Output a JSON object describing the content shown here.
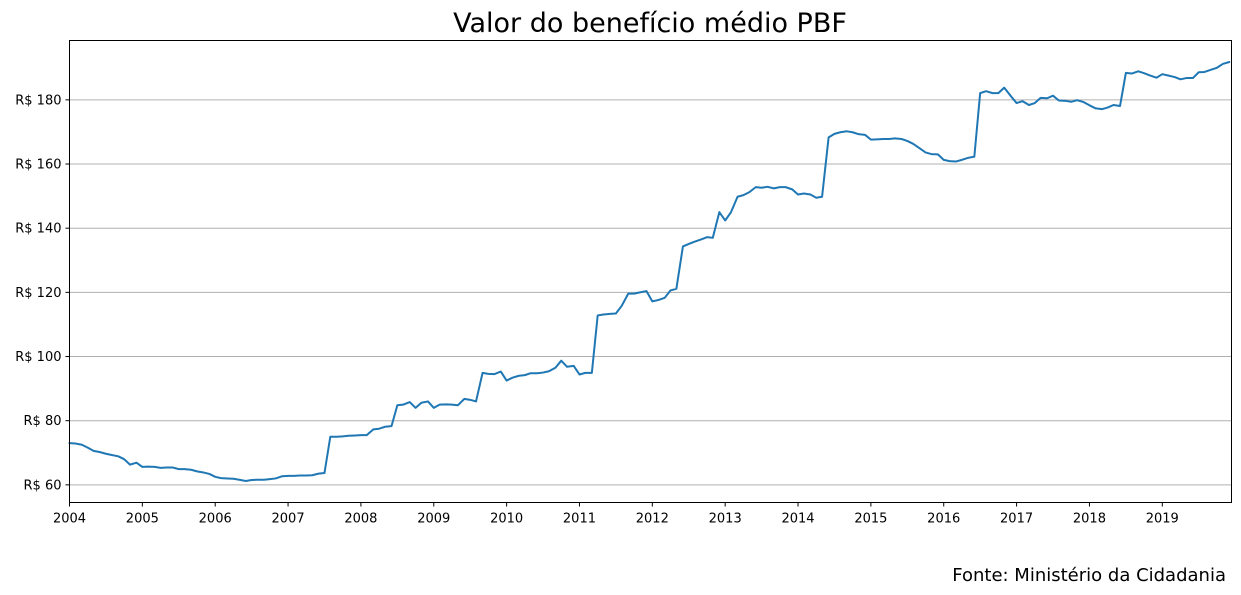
{
  "chart_data": {
    "type": "line",
    "title": "Valor do benefício médio PBF",
    "source": "Fonte: Ministério da Cidadania",
    "xlabel": "",
    "ylabel": "",
    "xlim": [
      2004.0,
      2019.95
    ],
    "ylim": [
      54.5,
      198.5
    ],
    "x_ticks": [
      2004,
      2005,
      2006,
      2007,
      2008,
      2009,
      2010,
      2011,
      2012,
      2013,
      2014,
      2015,
      2016,
      2017,
      2018,
      2019
    ],
    "y_ticks": [
      60,
      80,
      100,
      120,
      140,
      160,
      180
    ],
    "y_tick_prefix": "R$ ",
    "grid": "horizontal",
    "color": "#1f77b4",
    "series": [
      {
        "values": [
          [
            2004.0,
            73.0
          ],
          [
            2004.08,
            72.9
          ],
          [
            2004.17,
            72.5
          ],
          [
            2004.25,
            71.6
          ],
          [
            2004.33,
            70.6
          ],
          [
            2004.42,
            70.2
          ],
          [
            2004.5,
            69.7
          ],
          [
            2004.58,
            69.3
          ],
          [
            2004.67,
            68.9
          ],
          [
            2004.75,
            68.0
          ],
          [
            2004.83,
            66.3
          ],
          [
            2004.92,
            66.9
          ],
          [
            2005.0,
            65.6
          ],
          [
            2005.08,
            65.7
          ],
          [
            2005.17,
            65.6
          ],
          [
            2005.25,
            65.3
          ],
          [
            2005.33,
            65.4
          ],
          [
            2005.42,
            65.4
          ],
          [
            2005.5,
            64.9
          ],
          [
            2005.58,
            64.9
          ],
          [
            2005.67,
            64.7
          ],
          [
            2005.75,
            64.2
          ],
          [
            2005.83,
            63.9
          ],
          [
            2005.92,
            63.4
          ],
          [
            2006.0,
            62.5
          ],
          [
            2006.08,
            62.1
          ],
          [
            2006.17,
            62.0
          ],
          [
            2006.25,
            61.9
          ],
          [
            2006.33,
            61.6
          ],
          [
            2006.42,
            61.2
          ],
          [
            2006.5,
            61.5
          ],
          [
            2006.58,
            61.6
          ],
          [
            2006.67,
            61.6
          ],
          [
            2006.75,
            61.8
          ],
          [
            2006.83,
            62.0
          ],
          [
            2006.92,
            62.7
          ],
          [
            2007.0,
            62.8
          ],
          [
            2007.08,
            62.8
          ],
          [
            2007.17,
            62.9
          ],
          [
            2007.25,
            62.9
          ],
          [
            2007.33,
            63.0
          ],
          [
            2007.42,
            63.5
          ],
          [
            2007.5,
            63.7
          ],
          [
            2007.58,
            75.0
          ],
          [
            2007.67,
            75.0
          ],
          [
            2007.75,
            75.1
          ],
          [
            2007.83,
            75.3
          ],
          [
            2007.92,
            75.4
          ],
          [
            2008.0,
            75.5
          ],
          [
            2008.08,
            75.5
          ],
          [
            2008.17,
            77.3
          ],
          [
            2008.25,
            77.5
          ],
          [
            2008.33,
            78.1
          ],
          [
            2008.42,
            78.3
          ],
          [
            2008.5,
            84.8
          ],
          [
            2008.58,
            85.0
          ],
          [
            2008.67,
            85.8
          ],
          [
            2008.75,
            84.0
          ],
          [
            2008.83,
            85.6
          ],
          [
            2008.92,
            86.0
          ],
          [
            2009.0,
            84.0
          ],
          [
            2009.08,
            85.0
          ],
          [
            2009.17,
            85.1
          ],
          [
            2009.25,
            85.0
          ],
          [
            2009.33,
            84.8
          ],
          [
            2009.42,
            86.8
          ],
          [
            2009.5,
            86.5
          ],
          [
            2009.58,
            86.0
          ],
          [
            2009.67,
            94.9
          ],
          [
            2009.75,
            94.6
          ],
          [
            2009.83,
            94.5
          ],
          [
            2009.92,
            95.3
          ],
          [
            2010.0,
            92.5
          ],
          [
            2010.08,
            93.4
          ],
          [
            2010.17,
            94.0
          ],
          [
            2010.25,
            94.2
          ],
          [
            2010.33,
            94.8
          ],
          [
            2010.42,
            94.8
          ],
          [
            2010.5,
            95.0
          ],
          [
            2010.58,
            95.4
          ],
          [
            2010.67,
            96.5
          ],
          [
            2010.75,
            98.7
          ],
          [
            2010.83,
            96.8
          ],
          [
            2010.92,
            97.1
          ],
          [
            2011.0,
            94.4
          ],
          [
            2011.08,
            94.9
          ],
          [
            2011.17,
            94.9
          ],
          [
            2011.25,
            112.8
          ],
          [
            2011.33,
            113.1
          ],
          [
            2011.42,
            113.3
          ],
          [
            2011.5,
            113.4
          ],
          [
            2011.58,
            115.8
          ],
          [
            2011.67,
            119.6
          ],
          [
            2011.75,
            119.6
          ],
          [
            2011.83,
            120.0
          ],
          [
            2011.92,
            120.4
          ],
          [
            2012.0,
            117.2
          ],
          [
            2012.08,
            117.6
          ],
          [
            2012.17,
            118.3
          ],
          [
            2012.25,
            120.6
          ],
          [
            2012.33,
            121.1
          ],
          [
            2012.42,
            134.3
          ],
          [
            2012.5,
            135.1
          ],
          [
            2012.58,
            135.8
          ],
          [
            2012.67,
            136.5
          ],
          [
            2012.75,
            137.2
          ],
          [
            2012.83,
            137.0
          ],
          [
            2012.92,
            145.0
          ],
          [
            2013.0,
            142.4
          ],
          [
            2013.08,
            145.0
          ],
          [
            2013.17,
            149.8
          ],
          [
            2013.25,
            150.3
          ],
          [
            2013.33,
            151.2
          ],
          [
            2013.42,
            152.8
          ],
          [
            2013.5,
            152.6
          ],
          [
            2013.58,
            152.9
          ],
          [
            2013.67,
            152.4
          ],
          [
            2013.75,
            152.8
          ],
          [
            2013.83,
            152.8
          ],
          [
            2013.92,
            152.1
          ],
          [
            2014.0,
            150.5
          ],
          [
            2014.08,
            150.8
          ],
          [
            2014.17,
            150.5
          ],
          [
            2014.25,
            149.5
          ],
          [
            2014.33,
            149.8
          ],
          [
            2014.42,
            168.3
          ],
          [
            2014.5,
            169.4
          ],
          [
            2014.58,
            169.9
          ],
          [
            2014.67,
            170.2
          ],
          [
            2014.75,
            169.9
          ],
          [
            2014.83,
            169.3
          ],
          [
            2014.92,
            169.1
          ],
          [
            2015.0,
            167.6
          ],
          [
            2015.08,
            167.7
          ],
          [
            2015.17,
            167.8
          ],
          [
            2015.25,
            167.8
          ],
          [
            2015.33,
            168.0
          ],
          [
            2015.42,
            167.8
          ],
          [
            2015.5,
            167.2
          ],
          [
            2015.58,
            166.3
          ],
          [
            2015.67,
            164.9
          ],
          [
            2015.75,
            163.6
          ],
          [
            2015.83,
            163.1
          ],
          [
            2015.92,
            163.0
          ],
          [
            2016.0,
            161.3
          ],
          [
            2016.08,
            160.9
          ],
          [
            2016.17,
            160.8
          ],
          [
            2016.25,
            161.3
          ],
          [
            2016.33,
            161.9
          ],
          [
            2016.42,
            162.3
          ],
          [
            2016.5,
            182.1
          ],
          [
            2016.58,
            182.7
          ],
          [
            2016.67,
            182.1
          ],
          [
            2016.75,
            182.1
          ],
          [
            2016.83,
            183.8
          ],
          [
            2016.92,
            181.2
          ],
          [
            2017.0,
            179.0
          ],
          [
            2017.08,
            179.6
          ],
          [
            2017.17,
            178.4
          ],
          [
            2017.25,
            179.0
          ],
          [
            2017.33,
            180.6
          ],
          [
            2017.42,
            180.5
          ],
          [
            2017.5,
            181.3
          ],
          [
            2017.58,
            179.8
          ],
          [
            2017.67,
            179.7
          ],
          [
            2017.75,
            179.4
          ],
          [
            2017.83,
            179.9
          ],
          [
            2017.92,
            179.3
          ],
          [
            2018.0,
            178.3
          ],
          [
            2018.08,
            177.4
          ],
          [
            2018.17,
            177.1
          ],
          [
            2018.25,
            177.6
          ],
          [
            2018.33,
            178.4
          ],
          [
            2018.42,
            178.1
          ],
          [
            2018.5,
            188.4
          ],
          [
            2018.58,
            188.2
          ],
          [
            2018.67,
            188.9
          ],
          [
            2018.75,
            188.3
          ],
          [
            2018.83,
            187.6
          ],
          [
            2018.92,
            186.9
          ],
          [
            2019.0,
            188.0
          ],
          [
            2019.08,
            187.6
          ],
          [
            2019.17,
            187.1
          ],
          [
            2019.25,
            186.4
          ],
          [
            2019.33,
            186.8
          ],
          [
            2019.42,
            186.8
          ],
          [
            2019.5,
            188.6
          ],
          [
            2019.58,
            188.7
          ],
          [
            2019.67,
            189.4
          ],
          [
            2019.75,
            190.0
          ],
          [
            2019.83,
            191.2
          ],
          [
            2019.92,
            191.8
          ]
        ]
      }
    ]
  }
}
